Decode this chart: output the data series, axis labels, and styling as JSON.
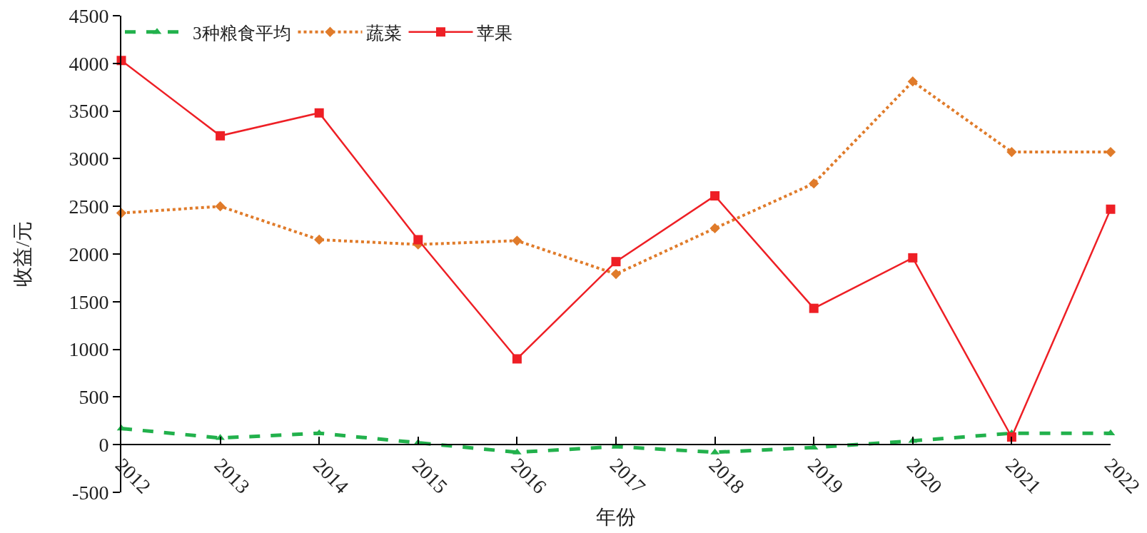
{
  "chart_data": {
    "type": "line",
    "xlabel": "年份",
    "ylabel": "收益/元",
    "categories": [
      "2012",
      "2013",
      "2014",
      "2015",
      "2016",
      "2017",
      "2018",
      "2019",
      "2020",
      "2021",
      "2022"
    ],
    "series": [
      {
        "name": "3种粮食平均",
        "color": "#22b14c",
        "marker": "triangle",
        "line_style": "dashed",
        "values": [
          170,
          70,
          120,
          20,
          -80,
          -20,
          -80,
          -30,
          40,
          120,
          120
        ]
      },
      {
        "name": "蔬菜",
        "color": "#e07b2a",
        "marker": "diamond",
        "line_style": "dotted",
        "values": [
          2430,
          2500,
          2150,
          2100,
          2140,
          1790,
          2270,
          2740,
          3810,
          3070,
          3070
        ]
      },
      {
        "name": "苹果",
        "color": "#ee1f25",
        "marker": "square",
        "line_style": "solid",
        "values": [
          4030,
          3240,
          3480,
          2150,
          900,
          1920,
          2610,
          1430,
          1960,
          80,
          2470
        ]
      }
    ],
    "ylim": [
      -500,
      4500
    ],
    "yticks": [
      -500,
      0,
      500,
      1000,
      1500,
      2000,
      2500,
      3000,
      3500,
      4000,
      4500
    ],
    "grid": false,
    "legend": "top left"
  }
}
